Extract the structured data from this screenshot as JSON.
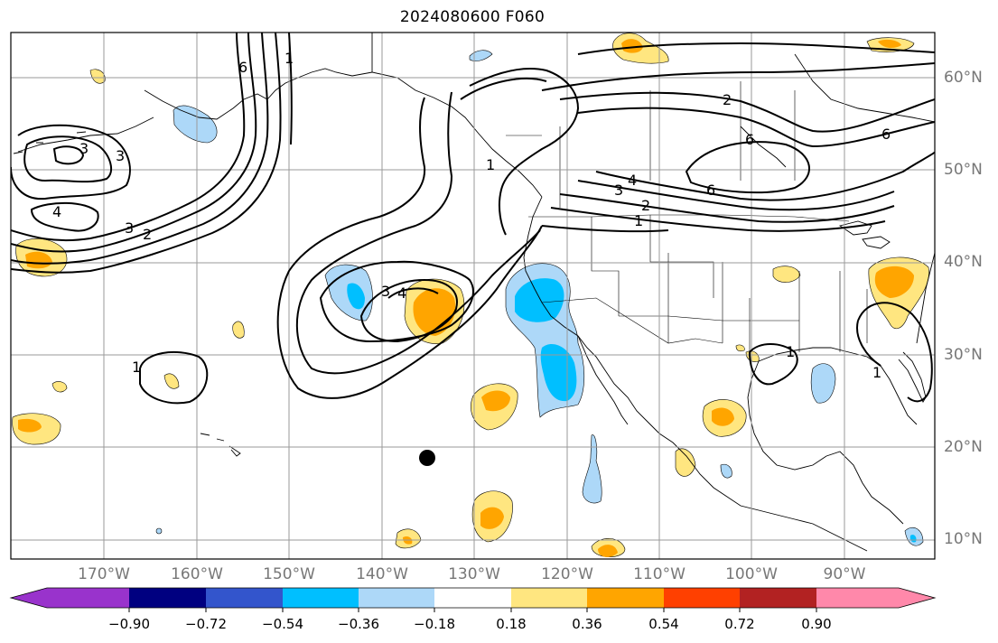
{
  "title": "2024080600 F060",
  "lat_labels": [
    "60°N",
    "50°N",
    "40°N",
    "30°N",
    "20°N",
    "10°N"
  ],
  "lon_labels": [
    "170°W",
    "160°W",
    "150°W",
    "140°W",
    "130°W",
    "120°W",
    "110°W",
    "100°W",
    "90°W"
  ],
  "contour_labels": [
    "6",
    "1",
    "3",
    "3",
    "4",
    "3",
    "2",
    "3",
    "4",
    "1",
    "2",
    "3",
    "4",
    "6",
    "2",
    "6",
    "6",
    "1",
    "1",
    "1",
    "1"
  ],
  "colorbar": {
    "ticks": [
      "−0.90",
      "−0.72",
      "−0.54",
      "−0.36",
      "−0.18",
      "0.18",
      "0.36",
      "0.54",
      "0.72",
      "0.90"
    ],
    "colors": [
      "#9933cc",
      "#000080",
      "#3355cc",
      "#00bfff",
      "#add8f8",
      "#ffffff",
      "#ffe680",
      "#ffa500",
      "#ff4000",
      "#b22222",
      "#ff88aa"
    ]
  },
  "colors": {
    "blue_fill_light": "#add8f8",
    "blue_fill": "#00bfff",
    "yellow_fill": "#ffe680",
    "orange_fill": "#ffa500",
    "contour": "#000000",
    "grid": "#9a9a9a",
    "label_gray": "#777777"
  },
  "marker": "black-dot"
}
